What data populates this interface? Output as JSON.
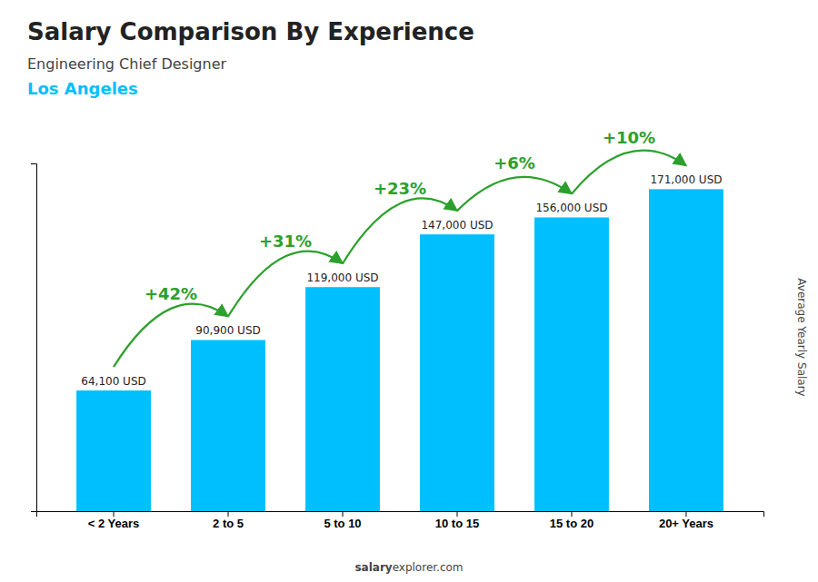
{
  "chart_data": {
    "type": "bar",
    "title": "Salary Comparison By Experience",
    "subtitle": "Engineering Chief Designer",
    "location": "Los Angeles",
    "ylabel": "Average Yearly Salary",
    "footer": [
      "salary",
      "explorer.com"
    ],
    "categories": [
      "< 2 Years",
      "2 to 5",
      "5 to 10",
      "10 to 15",
      "15 to 20",
      "20+ Years"
    ],
    "values": [
      64100,
      90900,
      119000,
      147000,
      156000,
      171000
    ],
    "value_labels": [
      "64,100 USD",
      "90,900 USD",
      "119,000 USD",
      "147,000 USD",
      "156,000 USD",
      "171,000 USD"
    ],
    "annotations": [
      "+42%",
      "+31%",
      "+23%",
      "+6%",
      "+10%"
    ],
    "color": "#00BFFF",
    "ylim": [
      0,
      184680
    ],
    "grid": false,
    "data_labels": true,
    "tick_labels": "x"
  }
}
